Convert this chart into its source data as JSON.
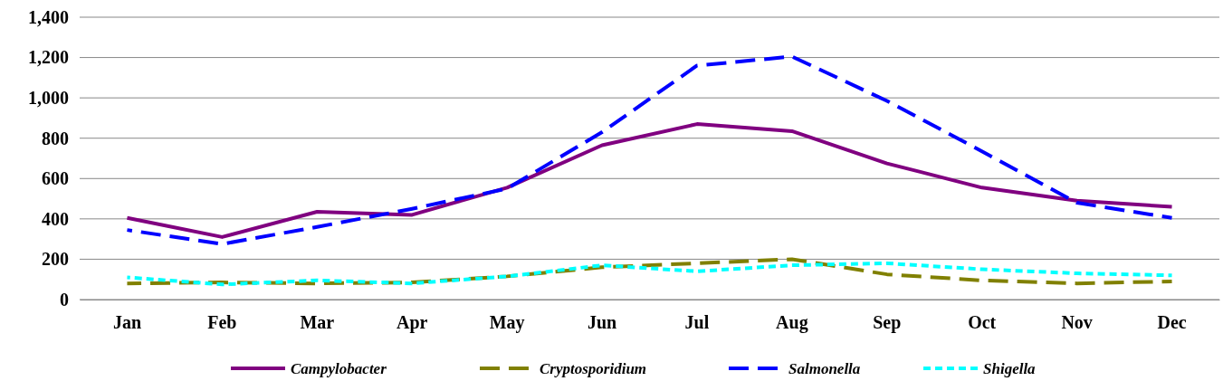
{
  "chart_data": {
    "type": "line",
    "categories": [
      "Jan",
      "Feb",
      "Mar",
      "Apr",
      "May",
      "Jun",
      "Jul",
      "Aug",
      "Sep",
      "Oct",
      "Nov",
      "Dec"
    ],
    "series": [
      {
        "name": "Campylobacter",
        "color": "#800080",
        "line_style": "solid",
        "values": [
          405,
          310,
          435,
          420,
          555,
          765,
          870,
          835,
          675,
          555,
          490,
          460
        ]
      },
      {
        "name": "Cryptosporidium",
        "color": "#808000",
        "line_style": "dashed",
        "values": [
          80,
          85,
          80,
          85,
          115,
          160,
          180,
          200,
          125,
          95,
          80,
          90
        ]
      },
      {
        "name": "Salmonella",
        "color": "#0000ff",
        "line_style": "dashed",
        "values": [
          345,
          275,
          360,
          450,
          550,
          830,
          1160,
          1205,
          985,
          735,
          480,
          405
        ]
      },
      {
        "name": "Shigella",
        "color": "#00ffff",
        "line_style": "dotted",
        "values": [
          110,
          75,
          95,
          80,
          115,
          170,
          140,
          170,
          180,
          150,
          130,
          120
        ]
      }
    ],
    "ylim": [
      0,
      1400
    ],
    "yticks": [
      0,
      {
        "value": 200,
        "label": "200"
      },
      {
        "value": 400,
        "label": "400"
      },
      {
        "value": 600,
        "label": "600"
      },
      {
        "value": 800,
        "label": "800"
      },
      {
        "value": 1000,
        "label": "1,000"
      },
      {
        "value": 1200,
        "label": "1,200"
      },
      {
        "value": 1400,
        "label": "1,400"
      }
    ],
    "grid": "y",
    "legend": "bottom",
    "marker": "none"
  }
}
